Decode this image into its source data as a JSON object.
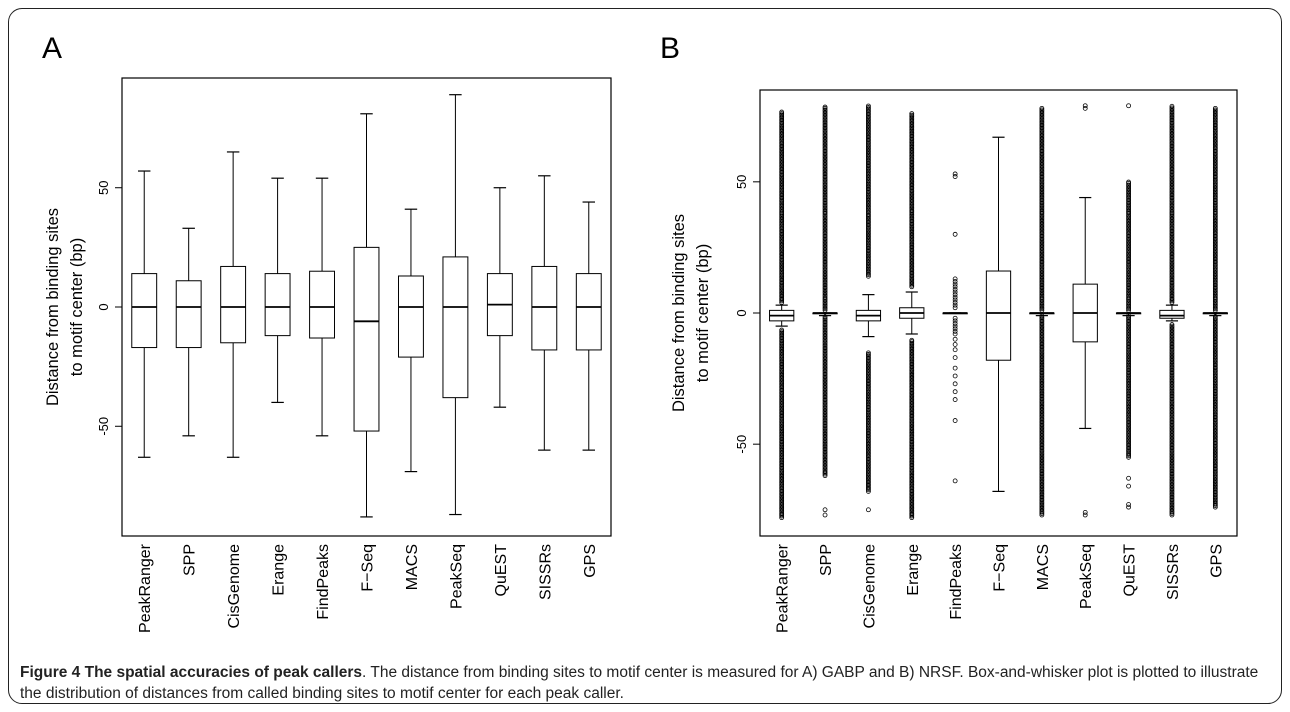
{
  "panels": [
    {
      "label": "A"
    },
    {
      "label": "B"
    }
  ],
  "chart_data": [
    {
      "type": "boxplot",
      "panel": "A",
      "ylabel_line1": "Distance from binding sites",
      "ylabel_line2": "to motif center (bp)",
      "ylim": [
        -96,
        96
      ],
      "yticks": [
        -50,
        0,
        50
      ],
      "categories": [
        "PeakRanger",
        "SPP",
        "CisGenome",
        "Erange",
        "FindPeaks",
        "F−Seq",
        "MACS",
        "PeakSeq",
        "QuEST",
        "SISSRs",
        "GPS"
      ],
      "boxes": [
        {
          "whisker_low": -63,
          "q1": -17,
          "median": 0,
          "q3": 14,
          "whisker_high": 57
        },
        {
          "whisker_low": -54,
          "q1": -17,
          "median": 0,
          "q3": 11,
          "whisker_high": 33
        },
        {
          "whisker_low": -63,
          "q1": -15,
          "median": 0,
          "q3": 17,
          "whisker_high": 65
        },
        {
          "whisker_low": -40,
          "q1": -12,
          "median": 0,
          "q3": 14,
          "whisker_high": 54
        },
        {
          "whisker_low": -54,
          "q1": -13,
          "median": 0,
          "q3": 15,
          "whisker_high": 54
        },
        {
          "whisker_low": -88,
          "q1": -52,
          "median": -6,
          "q3": 25,
          "whisker_high": 81
        },
        {
          "whisker_low": -69,
          "q1": -21,
          "median": 0,
          "q3": 13,
          "whisker_high": 41
        },
        {
          "whisker_low": -87,
          "q1": -38,
          "median": 0,
          "q3": 21,
          "whisker_high": 89
        },
        {
          "whisker_low": -42,
          "q1": -12,
          "median": 1,
          "q3": 14,
          "whisker_high": 50
        },
        {
          "whisker_low": -60,
          "q1": -18,
          "median": 0,
          "q3": 17,
          "whisker_high": 55
        },
        {
          "whisker_low": -60,
          "q1": -18,
          "median": 0,
          "q3": 14,
          "whisker_high": 44
        }
      ]
    },
    {
      "type": "boxplot",
      "panel": "B",
      "ylabel_line1": "Distance from binding sites",
      "ylabel_line2": "to motif center (bp)",
      "ylim": [
        -85,
        85
      ],
      "yticks": [
        -50,
        0,
        50
      ],
      "categories": [
        "PeakRanger",
        "SPP",
        "CisGenome",
        "Erange",
        "FindPeaks",
        "F−Seq",
        "MACS",
        "PeakSeq",
        "QuEST",
        "SISSRs",
        "GPS"
      ],
      "boxes": [
        {
          "whisker_low": -5,
          "q1": -3,
          "median": -1,
          "q3": 1,
          "whisker_high": 3,
          "outliers_low": [
            -6,
            -78
          ],
          "outliers_high": [
            4,
            77
          ],
          "outlier_style": "dense"
        },
        {
          "whisker_low": -1,
          "q1": 0,
          "median": 0,
          "q3": 0,
          "whisker_high": 0,
          "outliers_low": [
            -1,
            -62
          ],
          "outliers_high": [
            1,
            79
          ],
          "outliers_extra": [
            -75,
            -77
          ],
          "outlier_style": "dense"
        },
        {
          "whisker_low": -9,
          "q1": -3,
          "median": -1,
          "q3": 1,
          "whisker_high": 7,
          "outliers_low": [
            -15,
            -68
          ],
          "outliers_high": [
            14,
            79
          ],
          "outliers_extra": [
            -75
          ],
          "outlier_style": "dense"
        },
        {
          "whisker_low": -8,
          "q1": -2,
          "median": 0,
          "q3": 2,
          "whisker_high": 8,
          "outliers_low": [
            -10,
            -78
          ],
          "outliers_high": [
            10,
            76
          ],
          "outlier_style": "dense"
        },
        {
          "whisker_low": 0,
          "q1": 0,
          "median": 0,
          "q3": 0,
          "whisker_high": 0,
          "outliers_sparse": [
            53,
            52,
            30,
            13,
            12,
            11,
            10,
            9,
            8,
            7,
            6,
            5,
            4,
            3,
            2,
            -2,
            -3,
            -4,
            -5,
            -6,
            -7,
            -8,
            -10,
            -12,
            -14,
            -17,
            -21,
            -24,
            -27,
            -30,
            -33,
            -41,
            -64
          ],
          "outlier_style": "sparse"
        },
        {
          "whisker_low": -68,
          "q1": -18,
          "median": 0,
          "q3": 16,
          "whisker_high": 67
        },
        {
          "whisker_low": -1,
          "q1": 0,
          "median": 0,
          "q3": 0,
          "whisker_high": 0,
          "outliers_low": [
            -1,
            -77
          ],
          "outliers_high": [
            1,
            78
          ],
          "outlier_style": "dense"
        },
        {
          "whisker_low": -44,
          "q1": -11,
          "median": 0,
          "q3": 11,
          "whisker_high": 44,
          "outliers_sparse": [
            79,
            78,
            -76,
            -77
          ],
          "outlier_style": "sparse"
        },
        {
          "whisker_low": -1,
          "q1": 0,
          "median": 0,
          "q3": 0,
          "whisker_high": 0,
          "outliers_low": [
            -1,
            -55
          ],
          "outliers_high": [
            1,
            50
          ],
          "outliers_extra": [
            -63,
            -66,
            -73,
            -74,
            79
          ],
          "outlier_style": "dense"
        },
        {
          "whisker_low": -3,
          "q1": -2,
          "median": -1,
          "q3": 1,
          "whisker_high": 3,
          "outliers_low": [
            -4,
            -77
          ],
          "outliers_high": [
            4,
            79
          ],
          "outlier_style": "dense"
        },
        {
          "whisker_low": -1,
          "q1": 0,
          "median": 0,
          "q3": 0,
          "whisker_high": 0,
          "outliers_low": [
            -1,
            -74
          ],
          "outliers_high": [
            1,
            78
          ],
          "outlier_style": "dense"
        }
      ]
    }
  ],
  "caption": {
    "title": "Figure 4 The spatial accuracies of peak callers",
    "text": ". The distance from binding sites to motif center is measured for A) GABP and B) NRSF. Box-and-whisker plot is plotted to illustrate the distribution of distances from called binding sites to motif center for each peak caller."
  }
}
